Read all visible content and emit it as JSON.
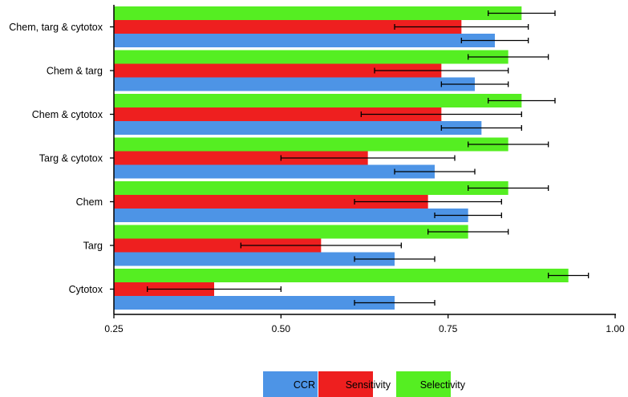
{
  "chart_data": {
    "type": "bar",
    "orientation": "horizontal",
    "categories": [
      "Chem, targ & cytotox",
      "Chem & targ",
      "Chem & cytotox",
      "Targ & cytotox",
      "Chem",
      "Targ",
      "Cytotox"
    ],
    "series": [
      {
        "name": "Selectivity",
        "color": "#55ee22",
        "values": [
          0.86,
          0.84,
          0.86,
          0.84,
          0.84,
          0.78,
          0.93
        ],
        "errors": [
          0.05,
          0.06,
          0.05,
          0.06,
          0.06,
          0.06,
          0.03
        ]
      },
      {
        "name": "Sensitivity",
        "color": "#ee1f1f",
        "values": [
          0.77,
          0.74,
          0.74,
          0.63,
          0.72,
          0.56,
          0.4
        ],
        "errors": [
          0.1,
          0.1,
          0.12,
          0.13,
          0.11,
          0.12,
          0.1
        ]
      },
      {
        "name": "CCR",
        "color": "#4d94e6",
        "values": [
          0.82,
          0.79,
          0.8,
          0.73,
          0.78,
          0.67,
          0.67
        ],
        "errors": [
          0.05,
          0.05,
          0.06,
          0.06,
          0.05,
          0.06,
          0.06
        ]
      }
    ],
    "xlim": [
      0.25,
      1.0
    ],
    "xticks": [
      "0.25",
      "0.50",
      "0.75",
      "1.00"
    ],
    "xlabel": "",
    "ylabel": "",
    "title": "",
    "grid": false,
    "legend": {
      "placement": "bottom-center",
      "order": [
        "CCR",
        "Sensitivity",
        "Selectivity"
      ]
    }
  }
}
